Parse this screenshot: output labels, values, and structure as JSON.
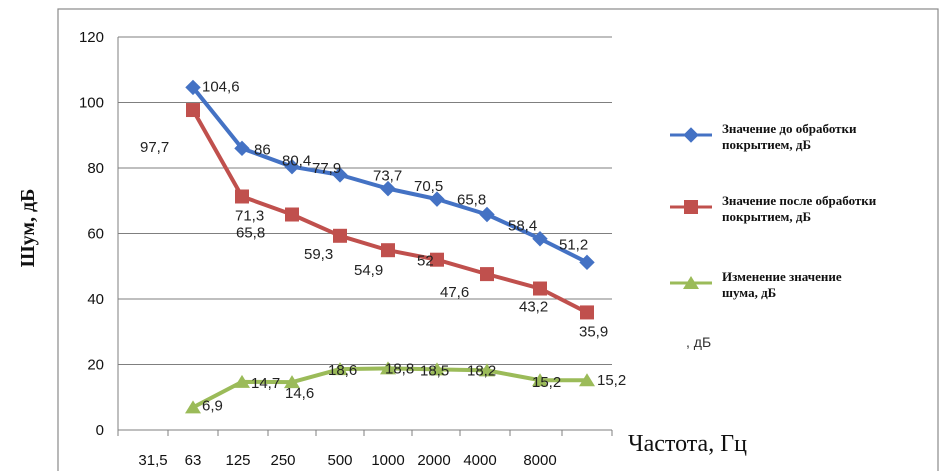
{
  "chart_data": {
    "type": "line",
    "categories": [
      "31,5",
      "63",
      "125",
      "250",
      "500",
      "1000",
      "2000",
      "4000",
      "8000"
    ],
    "xlabel": "Частота, Гц",
    "ylabel": "Шум, дБ",
    "ylim": [
      0,
      120
    ],
    "yticks": [
      "0",
      "20",
      "40",
      "60",
      "80",
      "100",
      "120"
    ],
    "grid": "horizontal",
    "legend_position": "right",
    "stray_text": ", дБ",
    "series": [
      {
        "name": "Значение до обработки покрытием, дБ",
        "color": "#4472c4",
        "marker": "diamond",
        "values": [
          104.6,
          86,
          80.4,
          77.9,
          73.7,
          70.5,
          65.8,
          58.4,
          51.2
        ],
        "labels": [
          "104,6",
          "86",
          "80,4",
          "77,9",
          "73,7",
          "70,5",
          "65,8",
          "58,4",
          "51,2"
        ]
      },
      {
        "name": "Значение после обработки покрытием, дБ",
        "color": "#c0504d",
        "marker": "square",
        "values": [
          97.7,
          71.3,
          65.8,
          59.3,
          54.9,
          52,
          47.6,
          43.2,
          35.9
        ],
        "labels": [
          "97,7",
          "71,3",
          "65,8",
          "59,3",
          "54,9",
          "52",
          "47,6",
          "43,2",
          "35,9"
        ]
      },
      {
        "name": "Изменение значение шума, дБ",
        "color": "#9bbb59",
        "marker": "triangle",
        "values": [
          6.9,
          14.7,
          14.6,
          18.6,
          18.8,
          18.5,
          18.2,
          15.2,
          15.2
        ],
        "labels": [
          "6,9",
          "14,7",
          "14,6",
          "18,6",
          "18,8",
          "18,5",
          "18,2",
          "15,2",
          "15,2"
        ]
      }
    ]
  }
}
